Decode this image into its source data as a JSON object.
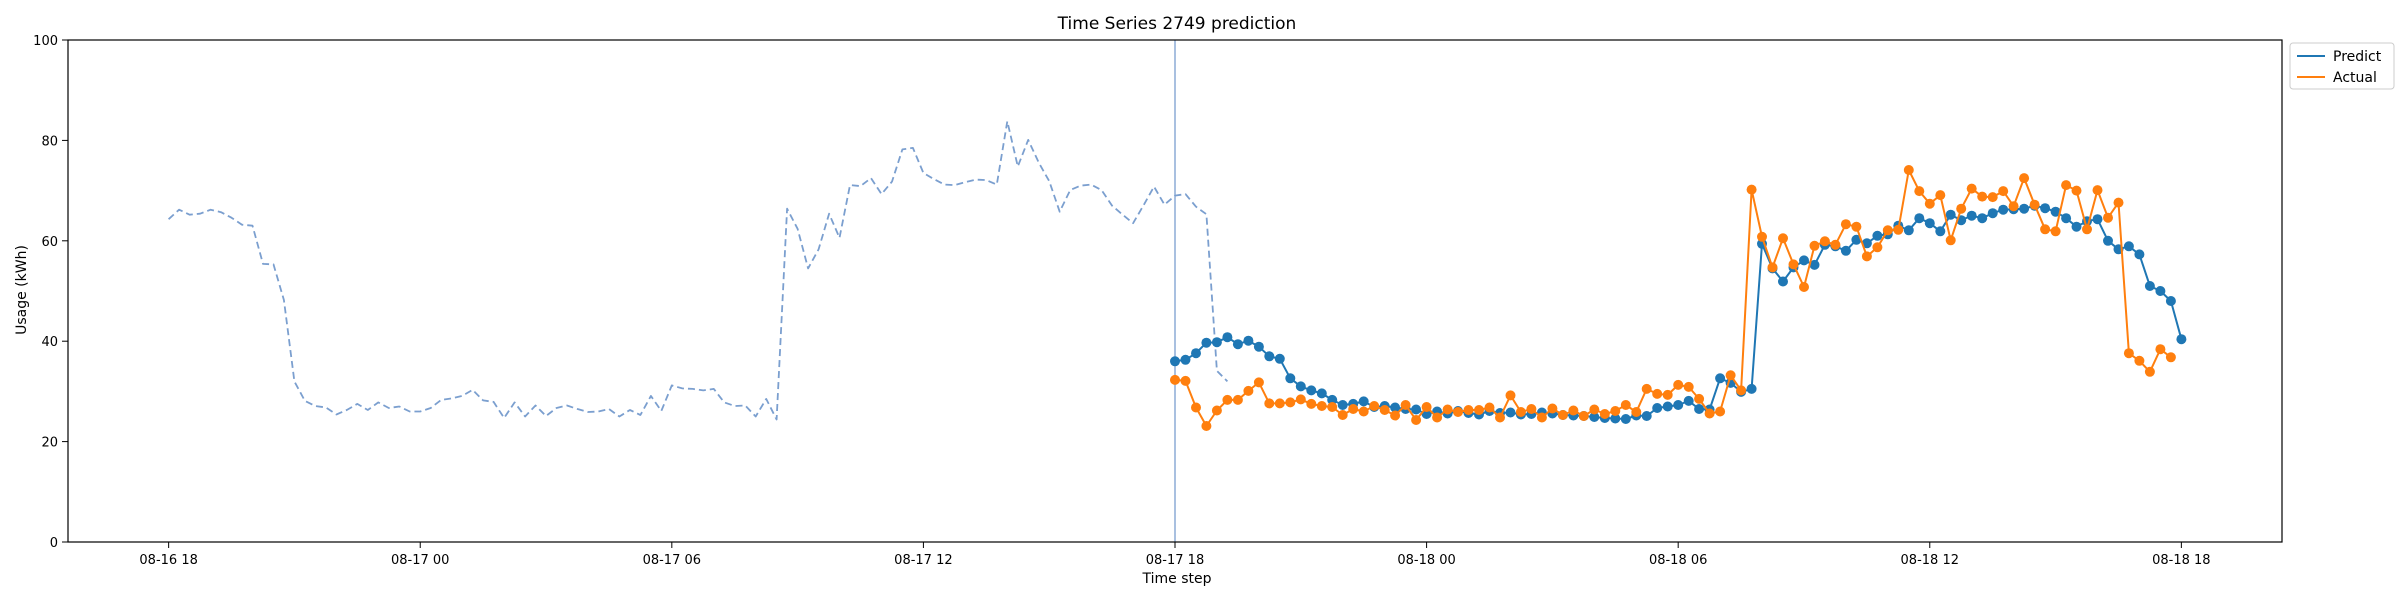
{
  "chart_data": {
    "type": "line",
    "title": "Time Series 2749 prediction",
    "xlabel": "Time step",
    "ylabel": "Usage (kWh)",
    "xlim": [
      "2021-08-16 15:36",
      "2021-08-18 20:24"
    ],
    "ylim": [
      0,
      100
    ],
    "y_ticks": [
      0,
      20,
      40,
      60,
      80,
      100
    ],
    "x_ticks": [
      {
        "t": "2021-08-16 18:00",
        "label": "08-16 18"
      },
      {
        "t": "2021-08-17 00:00",
        "label": "08-17 00"
      },
      {
        "t": "2021-08-17 06:00",
        "label": "08-17 06"
      },
      {
        "t": "2021-08-17 12:00",
        "label": "08-17 12"
      },
      {
        "t": "2021-08-17 18:00",
        "label": "08-17 18"
      },
      {
        "t": "2021-08-18 00:00",
        "label": "08-18 00"
      },
      {
        "t": "2021-08-18 06:00",
        "label": "08-18 06"
      },
      {
        "t": "2021-08-18 12:00",
        "label": "08-18 12"
      },
      {
        "t": "2021-08-18 18:00",
        "label": "08-18 18"
      }
    ],
    "grid": false,
    "legend": {
      "placement": "top-right outside plot",
      "entries": [
        "Predict",
        "Actual"
      ]
    },
    "forecast_start": "2021-08-17 18:00",
    "series": [
      {
        "role": "history",
        "color": "#7b9fcf",
        "style": "dashed",
        "start": "2021-08-16 18:00",
        "interval_minutes": 15,
        "values": [
          64.3,
          66.2,
          65.2,
          65.4,
          66.2,
          65.7,
          64.6,
          63.2,
          63.0,
          55.4,
          55.3,
          48.2,
          32.0,
          28.1,
          27.1,
          26.8,
          25.4,
          26.3,
          27.5,
          26.3,
          27.8,
          26.7,
          27.0,
          26.0,
          26.0,
          26.7,
          28.3,
          28.6,
          29.1,
          30.3,
          28.2,
          27.9,
          24.7,
          27.8,
          25.0,
          27.2,
          25.1,
          26.7,
          27.2,
          26.5,
          25.9,
          26.0,
          26.5,
          25.0,
          26.3,
          25.3,
          29.1,
          26.1,
          31.2,
          30.6,
          30.5,
          30.2,
          30.5,
          27.8,
          27.1,
          27.2,
          25.0,
          28.5,
          24.4,
          66.4,
          62.4,
          54.5,
          58.3,
          65.4,
          60.6,
          71.1,
          70.9,
          72.5,
          69.3,
          71.8,
          78.2,
          78.5,
          73.5,
          72.3,
          71.2,
          71.1,
          71.7,
          72.2,
          72.1,
          71.2,
          83.8,
          74.8,
          80.1,
          75.6,
          71.9,
          65.8,
          70.1,
          71.0,
          71.2,
          70.1,
          67.0,
          65.2,
          63.5,
          67.1,
          70.8,
          67.2,
          69.0,
          69.3,
          66.8,
          65.3,
          34.1,
          32.0
        ]
      },
      {
        "name": "Predict",
        "color": "#1f77b4",
        "style": "solid-with-markers",
        "start": "2021-08-17 18:00",
        "interval_minutes": 15,
        "values": [
          36.0,
          36.3,
          37.6,
          39.7,
          39.8,
          40.8,
          39.4,
          40.1,
          38.9,
          37.0,
          36.5,
          32.6,
          31.0,
          30.2,
          29.6,
          28.3,
          27.3,
          27.5,
          28.0,
          26.9,
          27.1,
          26.8,
          26.5,
          26.4,
          25.5,
          26.0,
          25.6,
          26.1,
          25.7,
          25.4,
          26.1,
          25.7,
          25.8,
          25.4,
          25.5,
          25.8,
          25.6,
          25.3,
          25.2,
          25.1,
          24.9,
          24.7,
          24.6,
          24.5,
          25.2,
          25.1,
          26.7,
          27.0,
          27.3,
          28.1,
          26.5,
          26.4,
          32.6,
          31.7,
          29.9,
          30.5,
          59.4,
          54.5,
          51.9,
          54.7,
          56.1,
          55.2,
          59.2,
          58.9,
          58.0,
          60.2,
          59.5,
          61.0,
          61.3,
          63.0,
          62.1,
          64.5,
          63.5,
          61.9,
          65.2,
          64.1,
          65.0,
          64.5,
          65.5,
          66.2,
          66.3,
          66.4,
          67.0,
          66.5,
          65.8,
          64.5,
          62.8,
          63.9,
          64.3,
          60.0,
          58.3,
          58.9,
          57.3,
          51.0,
          50.0,
          48.0,
          40.4
        ]
      },
      {
        "name": "Actual",
        "color": "#ff7f0e",
        "style": "solid-with-markers",
        "start": "2021-08-17 18:00",
        "interval_minutes": 15,
        "values": [
          32.3,
          32.1,
          26.8,
          23.1,
          26.2,
          28.3,
          28.3,
          30.1,
          31.8,
          27.6,
          27.6,
          27.8,
          28.4,
          27.5,
          27.1,
          26.9,
          25.3,
          26.5,
          26.0,
          27.1,
          26.3,
          25.2,
          27.3,
          24.3,
          26.9,
          24.8,
          26.4,
          25.9,
          26.3,
          26.3,
          26.8,
          24.8,
          29.2,
          25.9,
          26.5,
          24.8,
          26.6,
          25.3,
          26.2,
          25.1,
          26.4,
          25.5,
          26.1,
          27.3,
          25.9,
          30.5,
          29.5,
          29.3,
          31.3,
          30.9,
          28.5,
          25.6,
          26.0,
          33.2,
          30.2,
          70.2,
          60.8,
          54.7,
          60.5,
          55.3,
          50.8,
          59.0,
          59.9,
          59.2,
          63.3,
          62.8,
          56.9,
          58.7,
          62.1,
          62.2,
          74.1,
          69.9,
          67.4,
          69.1,
          60.1,
          66.4,
          70.4,
          68.8,
          68.7,
          69.9,
          66.9,
          72.5,
          67.2,
          62.3,
          61.9,
          71.1,
          70.0,
          62.3,
          70.1,
          64.6,
          67.6,
          37.6,
          36.1,
          33.9,
          38.4,
          36.8
        ]
      }
    ]
  }
}
